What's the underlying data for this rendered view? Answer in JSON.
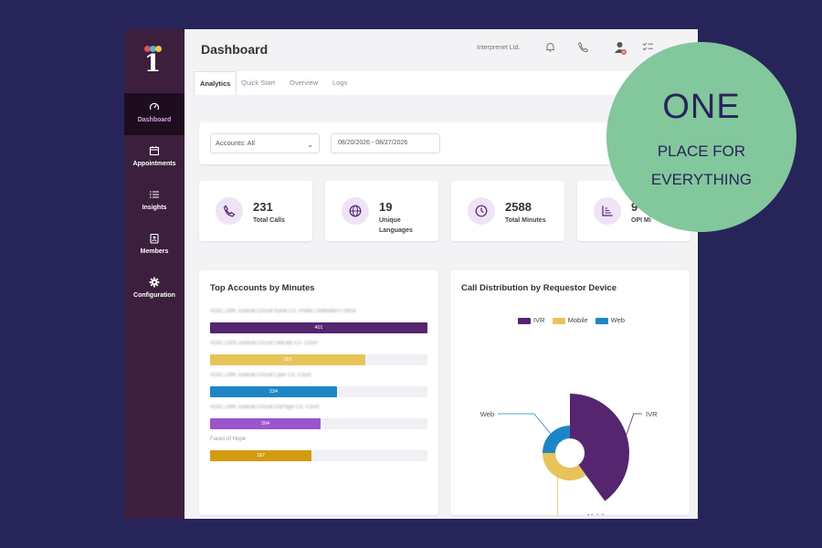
{
  "app": {
    "title": "Dashboard",
    "organization": "Interprenet Ltd."
  },
  "sidebar": {
    "items": [
      {
        "label": "Dashboard",
        "icon": "gauge-icon",
        "active": true
      },
      {
        "label": "Appointments",
        "icon": "calendar-icon",
        "active": false
      },
      {
        "label": "Insights",
        "icon": "list-icon",
        "active": false
      },
      {
        "label": "Members",
        "icon": "id-badge-icon",
        "active": false
      },
      {
        "label": "Configuration",
        "icon": "gear-icon",
        "active": false
      }
    ]
  },
  "topbar": {
    "icons": [
      "bell-icon",
      "phone-icon",
      "user-icon",
      "checklist-icon"
    ]
  },
  "tabs": [
    {
      "label": "Analytics",
      "active": true
    },
    {
      "label": "Quick Start",
      "active": false
    },
    {
      "label": "Overview",
      "active": false
    },
    {
      "label": "Logs",
      "active": false
    }
  ],
  "filters": {
    "account_select": "Accounts: All",
    "date_range": "08/20/2026 - 08/27/2026"
  },
  "stats": [
    {
      "value": "231",
      "caption": "Total Calls",
      "icon": "phone-icon"
    },
    {
      "value": "19",
      "caption": "Unique Languages",
      "icon": "globe-icon"
    },
    {
      "value": "2588",
      "caption": "Total Minutes",
      "icon": "clock-icon"
    },
    {
      "value": "9",
      "caption": "OPI Mi",
      "icon": "chart-icon"
    }
  ],
  "top_accounts": {
    "title": "Top Accounts by Minutes",
    "max": 401,
    "items": [
      {
        "label": "AOIC-18th Judicial Circuit Kane Co. Public Defender's office",
        "value": 401,
        "display": "401",
        "color": "#55256f"
      },
      {
        "label": "AOIC-23rd Judicial Circuit DeKalb Co. Court",
        "value": 287,
        "display": "287",
        "color": "#e8c35a"
      },
      {
        "label": "AOIC-19th Judicial Circuit Lake Co. Court",
        "value": 234,
        "display": "234",
        "color": "#1f86c6"
      },
      {
        "label": "AOIC-18th Judicial Circuit DuPage Co. Court",
        "value": 204,
        "display": "204",
        "color": "#9b55cc"
      },
      {
        "label": "Faces of Hope",
        "value": 187,
        "display": "187",
        "color": "#d29b12"
      }
    ]
  },
  "chart_data": {
    "type": "pie",
    "title": "Call Distribution by Requestor Device",
    "legend_position": "top",
    "series": [
      {
        "name": "IVR",
        "value": 0.4,
        "color": "#55256f"
      },
      {
        "name": "Mobile",
        "value": 0.35,
        "color": "#e8c35a"
      },
      {
        "name": "Web",
        "value": 0.25,
        "color": "#1f86c6"
      }
    ]
  },
  "promo": {
    "big": "ONE",
    "line1": "PLACE FOR",
    "line2": "EVERYTHING",
    "color": "#83c79c"
  }
}
